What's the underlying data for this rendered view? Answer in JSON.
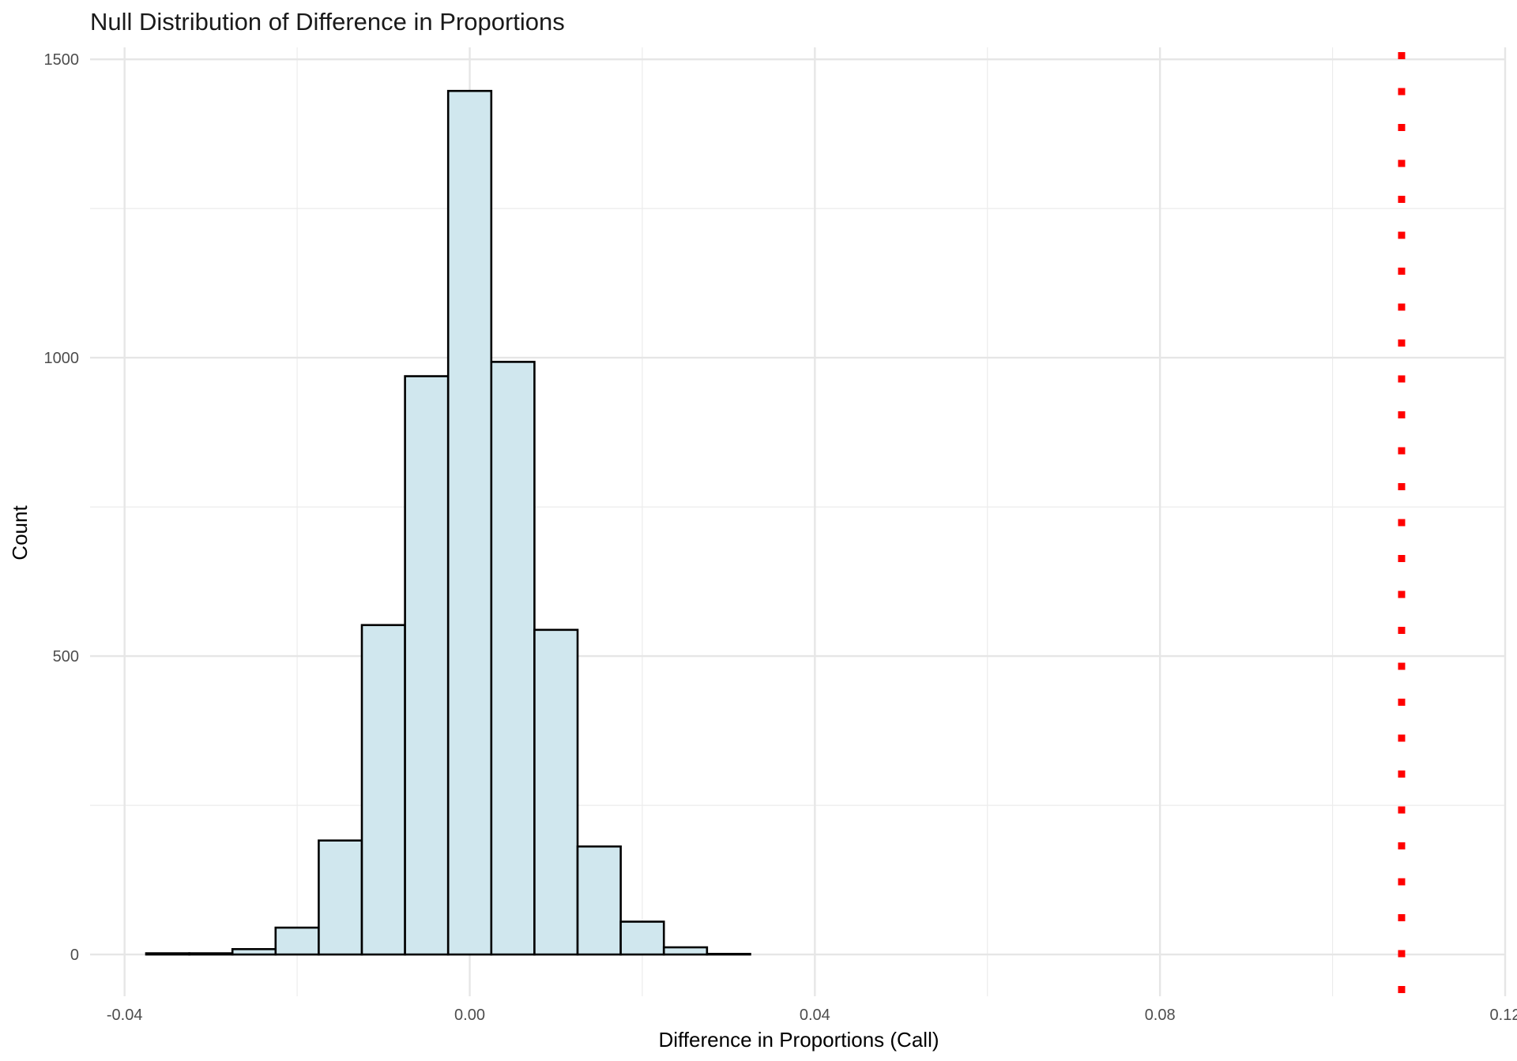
{
  "chart_data": {
    "type": "bar",
    "title": "Null Distribution of Difference in Proportions",
    "xlabel": "Difference in Proportions (Call)",
    "ylabel": "Count",
    "xlim": [
      -0.044,
      0.12
    ],
    "ylim": [
      -70,
      1520
    ],
    "x_ticks": [
      -0.04,
      0.0,
      0.04,
      0.08,
      0.12
    ],
    "x_tick_labels": [
      "-0.04",
      "0.00",
      "0.04",
      "0.08",
      "0.12"
    ],
    "y_ticks": [
      0,
      500,
      1000,
      1500
    ],
    "y_tick_labels": [
      "0",
      "500",
      "1000",
      "1500"
    ],
    "bin_width": 0.005,
    "bins_start": -0.0375,
    "values": [
      2,
      2,
      9,
      45,
      191,
      552,
      969,
      1447,
      993,
      544,
      181,
      55,
      12,
      1,
      0,
      0,
      0,
      0,
      0,
      0,
      0,
      0,
      0,
      0,
      0,
      0,
      0,
      0,
      0,
      0
    ],
    "reference_line": {
      "x": 0.108,
      "style": "dotted",
      "color": "#ff0000"
    },
    "fill_color": "#d0e7ee",
    "outline_color": "#000000",
    "grid": true,
    "legend": "none"
  }
}
